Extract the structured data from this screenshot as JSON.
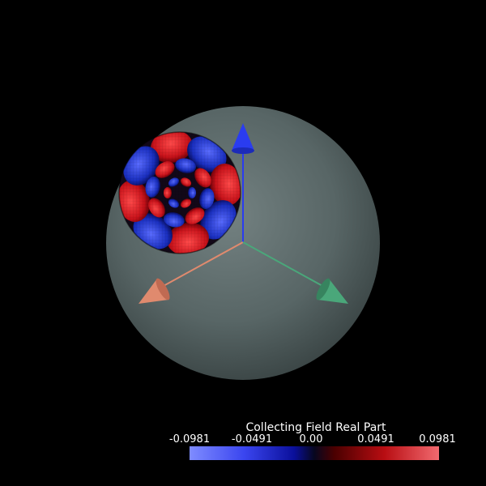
{
  "colorbar": {
    "title": "Collecting Field Real Part",
    "ticks": [
      "-0.0981",
      "-0.0491",
      "0.00",
      "0.0491",
      "0.0981"
    ]
  },
  "colors": {
    "background": "#000000",
    "sphere": "#5c6b6b",
    "axis_z": "#2a3cf0",
    "axis_x": "#e08a6e",
    "axis_y": "#4aa77a",
    "field_positive": "#c8121a",
    "field_negative": "#1a2fc0"
  }
}
